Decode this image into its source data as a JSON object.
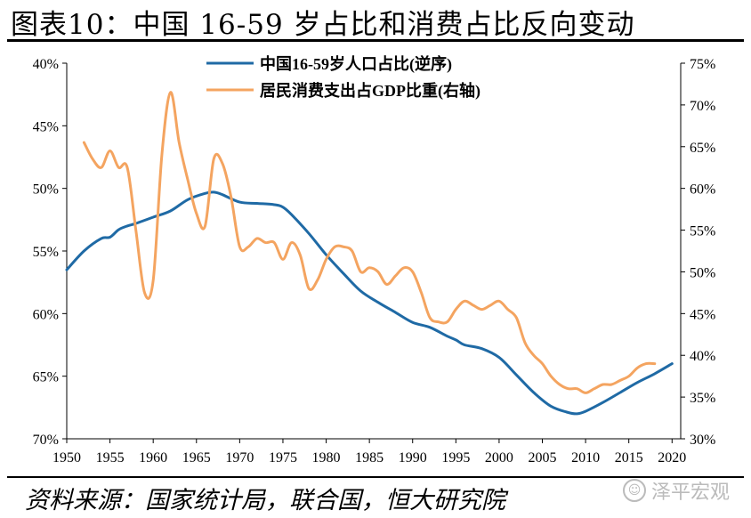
{
  "title": "图表10：中国 16-59 岁占比和消费占比反向变动",
  "source": "资料来源：国家统计局，联合国，恒大研究院",
  "watermark": {
    "icon": "chat-bubble-icon",
    "text": "泽平宏观",
    "color": "#bbbbbb"
  },
  "colors": {
    "population": "#1f6aa5",
    "consumption": "#f4a460"
  },
  "chart_data": {
    "type": "line",
    "x_ticks": [
      "1950",
      "1955",
      "1960",
      "1965",
      "1970",
      "1975",
      "1980",
      "1985",
      "1990",
      "1995",
      "2000",
      "2005",
      "2010",
      "2015",
      "2020"
    ],
    "xlim": [
      1950,
      2021
    ],
    "left_axis": {
      "label": "中国16-59岁人口占比(逆序)",
      "inverted": true,
      "ylim": [
        40,
        70
      ],
      "ticks": [
        "40%",
        "45%",
        "50%",
        "55%",
        "60%",
        "65%",
        "70%"
      ]
    },
    "right_axis": {
      "label": "居民消费支出占GDP比重(右轴)",
      "ylim": [
        30,
        75
      ],
      "ticks": [
        "30%",
        "35%",
        "40%",
        "45%",
        "50%",
        "55%",
        "60%",
        "65%",
        "70%",
        "75%"
      ]
    },
    "legend_position": "top-center",
    "series": [
      {
        "name": "中国16-59岁人口占比(逆序)",
        "axis": "left",
        "x": [
          1950,
          1952,
          1954,
          1955,
          1956,
          1957,
          1958,
          1960,
          1962,
          1964,
          1966,
          1967,
          1968,
          1970,
          1972,
          1974,
          1975,
          1976,
          1978,
          1980,
          1982,
          1984,
          1986,
          1988,
          1990,
          1992,
          1994,
          1995,
          1996,
          1998,
          2000,
          2002,
          2004,
          2006,
          2008,
          2009,
          2010,
          2012,
          2014,
          2016,
          2018,
          2020
        ],
        "values": [
          56.5,
          55.0,
          54.0,
          53.9,
          53.3,
          53.0,
          52.8,
          52.3,
          51.8,
          50.9,
          50.4,
          50.3,
          50.5,
          51.1,
          51.2,
          51.3,
          51.5,
          52.1,
          53.6,
          55.3,
          56.8,
          58.2,
          59.1,
          59.9,
          60.7,
          61.1,
          61.8,
          62.1,
          62.5,
          62.8,
          63.5,
          64.9,
          66.3,
          67.4,
          67.9,
          68.0,
          67.8,
          67.1,
          66.3,
          65.5,
          64.8,
          64.0
        ]
      },
      {
        "name": "居民消费支出占GDP比重(右轴)",
        "axis": "right",
        "x": [
          1952,
          1953,
          1954,
          1955,
          1956,
          1957,
          1958,
          1959,
          1960,
          1961,
          1962,
          1963,
          1964,
          1965,
          1966,
          1967,
          1968,
          1969,
          1970,
          1971,
          1972,
          1973,
          1974,
          1975,
          1976,
          1977,
          1978,
          1979,
          1980,
          1981,
          1982,
          1983,
          1984,
          1985,
          1986,
          1987,
          1988,
          1989,
          1990,
          1991,
          1992,
          1993,
          1994,
          1995,
          1996,
          1997,
          1998,
          1999,
          2000,
          2001,
          2002,
          2003,
          2004,
          2005,
          2006,
          2007,
          2008,
          2009,
          2010,
          2011,
          2012,
          2013,
          2014,
          2015,
          2016,
          2017,
          2018
        ],
        "values": [
          65.5,
          63.5,
          62.5,
          64.5,
          62.5,
          62.5,
          55.0,
          47.5,
          49.0,
          64.0,
          71.5,
          65.5,
          61.0,
          57.0,
          55.5,
          63.5,
          63.0,
          59.0,
          53.0,
          53.0,
          54.0,
          53.5,
          53.5,
          51.5,
          53.5,
          52.0,
          48.0,
          49.0,
          51.5,
          53.0,
          53.0,
          52.5,
          50.0,
          50.5,
          50.0,
          48.5,
          49.5,
          50.5,
          50.0,
          47.5,
          44.5,
          44.0,
          44.0,
          45.5,
          46.5,
          46.0,
          45.5,
          46.0,
          46.5,
          45.5,
          44.5,
          41.5,
          40.0,
          39.0,
          37.5,
          36.5,
          36.0,
          36.0,
          35.5,
          36.0,
          36.5,
          36.5,
          37.0,
          37.5,
          38.5,
          39.0,
          39.0
        ]
      }
    ]
  }
}
